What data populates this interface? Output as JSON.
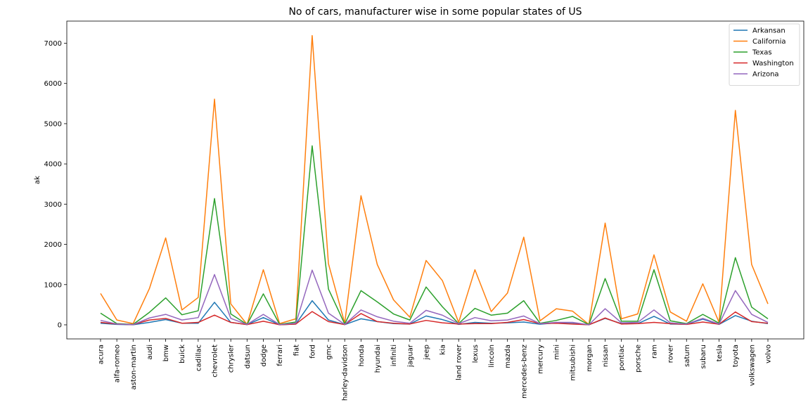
{
  "chart_data": {
    "type": "line",
    "title": "No of cars, manufacturer wise in some popular states of US",
    "xlabel": "",
    "ylabel": "ak",
    "ylim": [
      -350,
      7550
    ],
    "yticks": [
      0,
      1000,
      2000,
      3000,
      4000,
      5000,
      6000,
      7000
    ],
    "grid": false,
    "legend_position": "top-right",
    "categories": [
      "acura",
      "alfa-romeo",
      "aston-martin",
      "audi",
      "bmw",
      "buick",
      "cadillac",
      "chevrolet",
      "chrysler",
      "datsun",
      "dodge",
      "ferrari",
      "fiat",
      "ford",
      "gmc",
      "harley-davidson",
      "honda",
      "hyundai",
      "infiniti",
      "jaguar",
      "jeep",
      "kia",
      "land rover",
      "lexus",
      "lincoln",
      "mazda",
      "mercedes-benz",
      "mercury",
      "mini",
      "mitsubishi",
      "morgan",
      "nissan",
      "pontiac",
      "porsche",
      "ram",
      "rover",
      "saturn",
      "subaru",
      "tesla",
      "toyota",
      "volkswagen",
      "volvo"
    ],
    "series": [
      {
        "name": "Arkansan",
        "color": "#1f77b4",
        "values": [
          40,
          10,
          2,
          60,
          130,
          40,
          40,
          560,
          60,
          5,
          180,
          2,
          20,
          600,
          120,
          5,
          150,
          80,
          30,
          20,
          220,
          130,
          10,
          60,
          40,
          50,
          70,
          15,
          50,
          30,
          1,
          160,
          30,
          30,
          210,
          20,
          15,
          140,
          10,
          230,
          90,
          30
        ]
      },
      {
        "name": "California",
        "color": "#ff7f0e",
        "values": [
          780,
          120,
          30,
          900,
          2160,
          370,
          680,
          5610,
          520,
          10,
          1370,
          30,
          150,
          7190,
          1520,
          40,
          3210,
          1500,
          620,
          190,
          1600,
          1100,
          60,
          1370,
          330,
          790,
          2180,
          100,
          400,
          340,
          10,
          2530,
          150,
          270,
          1740,
          320,
          90,
          1020,
          60,
          5330,
          1500,
          520
        ]
      },
      {
        "name": "Texas",
        "color": "#2ca02c",
        "values": [
          290,
          30,
          10,
          310,
          670,
          250,
          350,
          3140,
          270,
          10,
          770,
          10,
          70,
          4450,
          890,
          20,
          850,
          570,
          270,
          120,
          940,
          450,
          30,
          410,
          240,
          290,
          600,
          40,
          110,
          210,
          5,
          1150,
          90,
          90,
          1370,
          100,
          30,
          260,
          40,
          1670,
          440,
          150
        ]
      },
      {
        "name": "Washington",
        "color": "#d62728",
        "values": [
          60,
          20,
          5,
          120,
          160,
          40,
          60,
          240,
          60,
          5,
          90,
          2,
          20,
          330,
          80,
          5,
          280,
          80,
          40,
          20,
          110,
          50,
          20,
          30,
          30,
          60,
          130,
          30,
          40,
          20,
          1,
          170,
          20,
          30,
          60,
          30,
          10,
          70,
          15,
          320,
          80,
          40
        ]
      },
      {
        "name": "Arizona",
        "color": "#9467bd",
        "values": [
          110,
          20,
          5,
          170,
          260,
          120,
          180,
          1250,
          160,
          10,
          260,
          5,
          40,
          1360,
          290,
          10,
          370,
          200,
          90,
          40,
          360,
          240,
          30,
          180,
          100,
          120,
          220,
          30,
          60,
          60,
          2,
          400,
          50,
          60,
          370,
          50,
          20,
          160,
          20,
          850,
          260,
          60
        ]
      }
    ]
  }
}
